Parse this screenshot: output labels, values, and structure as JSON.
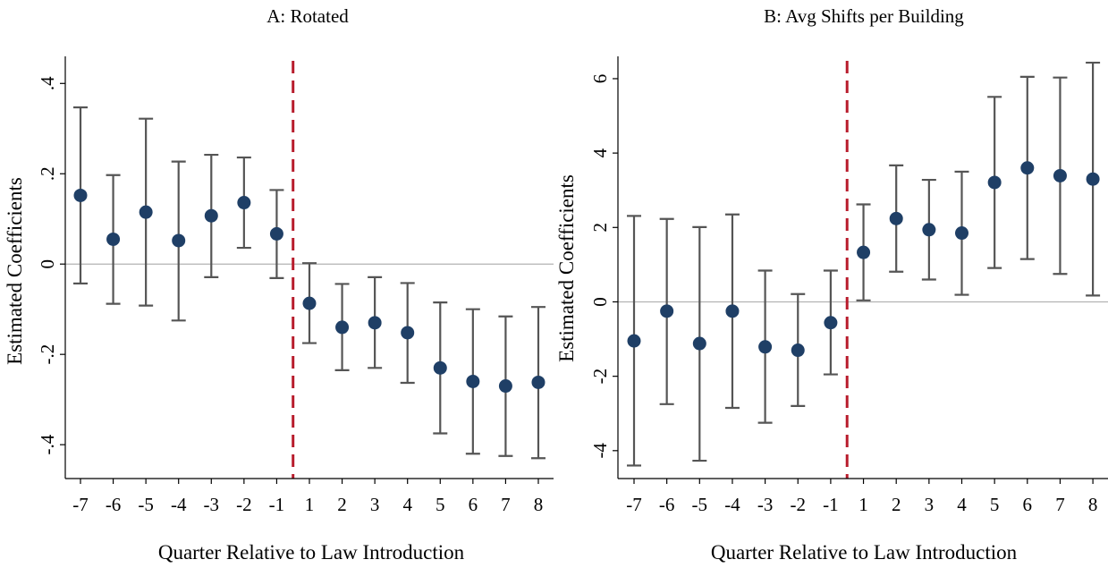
{
  "chart_data": [
    {
      "type": "scatter",
      "title": "A: Rotated",
      "xlabel": "Quarter Relative to Law Introduction",
      "ylabel": "Estimated Coefficients",
      "x_categories": [
        "-7",
        "-6",
        "-5",
        "-4",
        "-3",
        "-2",
        "-1",
        "1",
        "2",
        "3",
        "4",
        "5",
        "6",
        "7",
        "8"
      ],
      "yticks": [
        ".4",
        ".2",
        "0",
        "-.2",
        "-.4"
      ],
      "ytick_values": [
        0.4,
        0.2,
        0,
        -0.2,
        -0.4
      ],
      "ylim": [
        -0.475,
        0.46
      ],
      "reference_line_y": 0,
      "vertical_line_between": [
        "-1",
        "1"
      ],
      "points": [
        {
          "x": "-7",
          "estimate": 0.152,
          "ci_low": -0.043,
          "ci_high": 0.347
        },
        {
          "x": "-6",
          "estimate": 0.055,
          "ci_low": -0.088,
          "ci_high": 0.197
        },
        {
          "x": "-5",
          "estimate": 0.115,
          "ci_low": -0.092,
          "ci_high": 0.322
        },
        {
          "x": "-4",
          "estimate": 0.052,
          "ci_low": -0.125,
          "ci_high": 0.227
        },
        {
          "x": "-3",
          "estimate": 0.107,
          "ci_low": -0.029,
          "ci_high": 0.242
        },
        {
          "x": "-2",
          "estimate": 0.136,
          "ci_low": 0.036,
          "ci_high": 0.236
        },
        {
          "x": "-1",
          "estimate": 0.067,
          "ci_low": -0.031,
          "ci_high": 0.164
        },
        {
          "x": "1",
          "estimate": -0.087,
          "ci_low": -0.175,
          "ci_high": 0.002
        },
        {
          "x": "2",
          "estimate": -0.14,
          "ci_low": -0.235,
          "ci_high": -0.044
        },
        {
          "x": "3",
          "estimate": -0.13,
          "ci_low": -0.23,
          "ci_high": -0.029
        },
        {
          "x": "4",
          "estimate": -0.152,
          "ci_low": -0.263,
          "ci_high": -0.042
        },
        {
          "x": "5",
          "estimate": -0.23,
          "ci_low": -0.375,
          "ci_high": -0.085
        },
        {
          "x": "6",
          "estimate": -0.26,
          "ci_low": -0.42,
          "ci_high": -0.1
        },
        {
          "x": "7",
          "estimate": -0.27,
          "ci_low": -0.425,
          "ci_high": -0.116
        },
        {
          "x": "8",
          "estimate": -0.262,
          "ci_low": -0.43,
          "ci_high": -0.095
        }
      ]
    },
    {
      "type": "scatter",
      "title": "B: Avg Shifts per Building",
      "xlabel": "Quarter Relative to Law Introduction",
      "ylabel": "Estimated Coefficients",
      "x_categories": [
        "-7",
        "-6",
        "-5",
        "-4",
        "-3",
        "-2",
        "-1",
        "1",
        "2",
        "3",
        "4",
        "5",
        "6",
        "7",
        "8"
      ],
      "yticks": [
        "6",
        "4",
        "2",
        "0",
        "-2",
        "-4"
      ],
      "ytick_values": [
        6,
        4,
        2,
        0,
        -2,
        -4
      ],
      "ylim": [
        -4.75,
        6.6
      ],
      "reference_line_y": 0,
      "vertical_line_between": [
        "-1",
        "1"
      ],
      "points": [
        {
          "x": "-7",
          "estimate": -1.05,
          "ci_low": -4.4,
          "ci_high": 2.31
        },
        {
          "x": "-6",
          "estimate": -0.25,
          "ci_low": -2.75,
          "ci_high": 2.23
        },
        {
          "x": "-5",
          "estimate": -1.12,
          "ci_low": -4.27,
          "ci_high": 2.01
        },
        {
          "x": "-4",
          "estimate": -0.25,
          "ci_low": -2.85,
          "ci_high": 2.35
        },
        {
          "x": "-3",
          "estimate": -1.21,
          "ci_low": -3.25,
          "ci_high": 0.84
        },
        {
          "x": "-2",
          "estimate": -1.3,
          "ci_low": -2.8,
          "ci_high": 0.21
        },
        {
          "x": "-1",
          "estimate": -0.56,
          "ci_low": -1.95,
          "ci_high": 0.84
        },
        {
          "x": "1",
          "estimate": 1.33,
          "ci_low": 0.04,
          "ci_high": 2.62
        },
        {
          "x": "2",
          "estimate": 2.24,
          "ci_low": 0.81,
          "ci_high": 3.67
        },
        {
          "x": "3",
          "estimate": 1.94,
          "ci_low": 0.6,
          "ci_high": 3.28
        },
        {
          "x": "4",
          "estimate": 1.85,
          "ci_low": 0.19,
          "ci_high": 3.5
        },
        {
          "x": "5",
          "estimate": 3.21,
          "ci_low": 0.91,
          "ci_high": 5.51
        },
        {
          "x": "6",
          "estimate": 3.6,
          "ci_low": 1.15,
          "ci_high": 6.05
        },
        {
          "x": "7",
          "estimate": 3.39,
          "ci_low": 0.75,
          "ci_high": 6.03
        },
        {
          "x": "8",
          "estimate": 3.3,
          "ci_low": 0.17,
          "ci_high": 6.43
        }
      ]
    }
  ],
  "colors": {
    "marker": "#1f3f66",
    "errorbar": "#555555",
    "event_line": "#b81c2c",
    "zero_line": "#b3b3b3",
    "axis": "#000000"
  }
}
